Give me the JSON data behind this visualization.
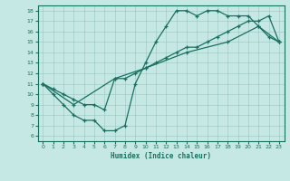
{
  "title": "",
  "xlabel": "Humidex (Indice chaleur)",
  "ylabel": "",
  "background_color": "#c5e8e5",
  "line_color": "#1a7060",
  "xlim": [
    -0.5,
    23.5
  ],
  "ylim": [
    5.5,
    18.5
  ],
  "xticks": [
    0,
    1,
    2,
    3,
    4,
    5,
    6,
    7,
    8,
    9,
    10,
    11,
    12,
    13,
    14,
    15,
    16,
    17,
    18,
    19,
    20,
    21,
    22,
    23
  ],
  "yticks": [
    6,
    7,
    8,
    9,
    10,
    11,
    12,
    13,
    14,
    15,
    16,
    17,
    18
  ],
  "line1_x": [
    0,
    1,
    2,
    3,
    4,
    5,
    6,
    7,
    8,
    9,
    10,
    11,
    12,
    13,
    14,
    15,
    16,
    17,
    18,
    19,
    20,
    21,
    22,
    23
  ],
  "line1_y": [
    11,
    10,
    9,
    8,
    7.5,
    7.5,
    6.5,
    6.5,
    7,
    11,
    13,
    15,
    16.5,
    18,
    18,
    17.5,
    18,
    18,
    17.5,
    17.5,
    17.5,
    16.5,
    15.5,
    15
  ],
  "line2_x": [
    0,
    1,
    2,
    3,
    4,
    5,
    6,
    7,
    8,
    9,
    10,
    11,
    12,
    13,
    14,
    15,
    16,
    17,
    18,
    19,
    20,
    21,
    22,
    23
  ],
  "line2_y": [
    11,
    10.5,
    10,
    9.5,
    9,
    9,
    8.5,
    11.5,
    11.5,
    12,
    12.5,
    13,
    13.5,
    14,
    14.5,
    14.5,
    15,
    15.5,
    16,
    16.5,
    17,
    17,
    17.5,
    15
  ],
  "line3_x": [
    0,
    3,
    7,
    10,
    14,
    18,
    21,
    23
  ],
  "line3_y": [
    11,
    9,
    11.5,
    12.5,
    14,
    15,
    16.5,
    15
  ]
}
